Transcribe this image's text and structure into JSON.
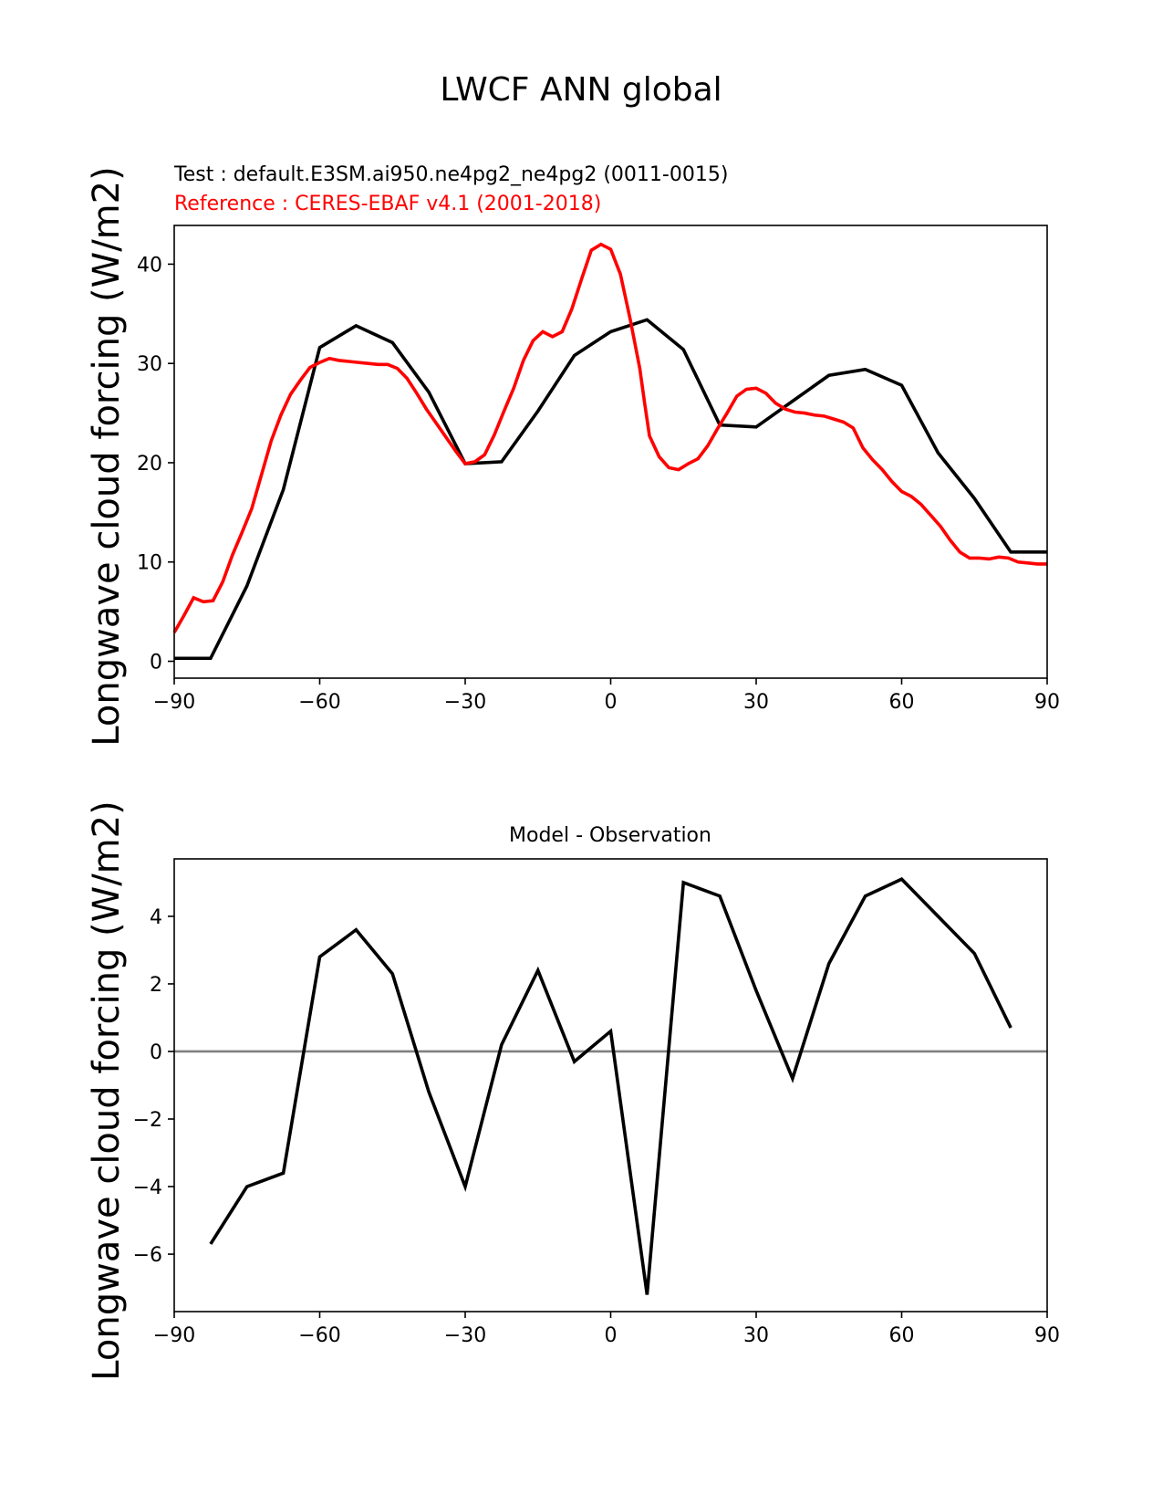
{
  "figure": {
    "title": "LWCF ANN global"
  },
  "chart_data": [
    {
      "type": "line",
      "test_label": "Test : default.E3SM.ai950.ne4pg2_ne4pg2 (0011-0015)",
      "reference_label": "Reference : CERES-EBAF v4.1 (2001-2018)",
      "xlabel": "",
      "ylabel": "Longwave cloud forcing (W/m2)",
      "xlim": [
        -90,
        90
      ],
      "ylim": [
        -1.7,
        43.9
      ],
      "xticks": [
        -90,
        -60,
        -30,
        0,
        30,
        60,
        90
      ],
      "xtick_labels": [
        "−90",
        "−60",
        "−30",
        "0",
        "30",
        "60",
        "90"
      ],
      "yticks": [
        0,
        10,
        20,
        30,
        40
      ],
      "ytick_labels": [
        "0",
        "10",
        "20",
        "30",
        "40"
      ],
      "series": [
        {
          "name": "Test",
          "color": "#000000",
          "x": [
            -90,
            -82.5,
            -75,
            -67.5,
            -60,
            -52.5,
            -45,
            -37.5,
            -30,
            -22.5,
            -15,
            -7.5,
            0,
            7.5,
            15,
            22.5,
            30,
            37.5,
            45,
            52.5,
            60,
            67.5,
            75,
            82.5,
            90
          ],
          "y": [
            0.3,
            0.3,
            7.6,
            17.3,
            31.6,
            33.8,
            32.1,
            27.1,
            19.9,
            20.1,
            25.2,
            30.8,
            33.2,
            34.4,
            31.4,
            23.8,
            23.6,
            26.2,
            28.8,
            29.4,
            27.8,
            21.0,
            16.4,
            11.0,
            11.0
          ]
        },
        {
          "name": "Reference",
          "color": "#ff0000",
          "x": [
            -90,
            -88,
            -86,
            -84,
            -82,
            -80,
            -78,
            -76,
            -74,
            -72,
            -70,
            -68,
            -66,
            -64,
            -62,
            -60,
            -58,
            -56,
            -54,
            -52,
            -50,
            -48,
            -46,
            -44,
            -42,
            -40,
            -38,
            -36,
            -34,
            -32,
            -30,
            -28,
            -26,
            -24,
            -22,
            -20,
            -18,
            -16,
            -14,
            -12,
            -10,
            -8,
            -6,
            -4,
            -2,
            0,
            2,
            4,
            6,
            7,
            8,
            10,
            12,
            14,
            16,
            18,
            20,
            22,
            24,
            26,
            28,
            30,
            32,
            34,
            36,
            38,
            40,
            42,
            44,
            46,
            48,
            50,
            52,
            54,
            56,
            58,
            60,
            62,
            64,
            66,
            68,
            70,
            72,
            74,
            76,
            78,
            80,
            82,
            84,
            86,
            88,
            90
          ],
          "y": [
            2.9,
            4.6,
            6.4,
            6.0,
            6.1,
            8.0,
            10.7,
            13.0,
            15.4,
            18.8,
            22.2,
            24.8,
            26.9,
            28.3,
            29.6,
            30.1,
            30.5,
            30.3,
            30.2,
            30.1,
            30.0,
            29.9,
            29.9,
            29.5,
            28.5,
            27.0,
            25.4,
            24.0,
            22.6,
            21.2,
            19.9,
            20.1,
            20.8,
            22.8,
            25.2,
            27.5,
            30.3,
            32.3,
            33.2,
            32.7,
            33.2,
            35.5,
            38.5,
            41.4,
            42.0,
            41.5,
            39.0,
            34.5,
            29.5,
            26.0,
            22.7,
            20.6,
            19.5,
            19.3,
            19.9,
            20.4,
            21.7,
            23.4,
            25.0,
            26.7,
            27.4,
            27.5,
            27.0,
            26.0,
            25.4,
            25.1,
            25.0,
            24.8,
            24.7,
            24.4,
            24.1,
            23.5,
            21.5,
            20.3,
            19.3,
            18.1,
            17.1,
            16.6,
            15.8,
            14.7,
            13.6,
            12.2,
            11.0,
            10.4,
            10.4,
            10.3,
            10.5,
            10.4,
            10.0,
            9.9,
            9.8,
            9.8
          ]
        }
      ]
    },
    {
      "type": "line",
      "title": "Model - Observation",
      "xlabel": "",
      "ylabel": "Longwave cloud forcing (W/m2)",
      "xlim": [
        -90,
        90
      ],
      "ylim": [
        -7.7,
        5.7
      ],
      "xticks": [
        -90,
        -60,
        -30,
        0,
        30,
        60,
        90
      ],
      "xtick_labels": [
        "−90",
        "−60",
        "−30",
        "0",
        "30",
        "60",
        "90"
      ],
      "yticks": [
        -6,
        -4,
        -2,
        0,
        2,
        4
      ],
      "ytick_labels": [
        "−6",
        "−4",
        "−2",
        "0",
        "2",
        "4"
      ],
      "zero_line_color": "#808080",
      "series": [
        {
          "name": "Model - Observation",
          "color": "#000000",
          "x": [
            -82.5,
            -75,
            -67.5,
            -60,
            -52.5,
            -45,
            -37.5,
            -30,
            -22.5,
            -15,
            -7.5,
            0,
            7.5,
            15,
            22.5,
            30,
            37.5,
            45,
            52.5,
            60,
            67.5,
            75,
            82.5
          ],
          "y": [
            -5.7,
            -4.0,
            -3.6,
            2.8,
            3.6,
            2.3,
            -1.2,
            -4.0,
            0.2,
            2.4,
            -0.3,
            0.6,
            -7.2,
            5.0,
            4.6,
            1.8,
            -0.8,
            2.6,
            4.6,
            5.1,
            4.0,
            2.9,
            0.7
          ]
        }
      ]
    }
  ]
}
